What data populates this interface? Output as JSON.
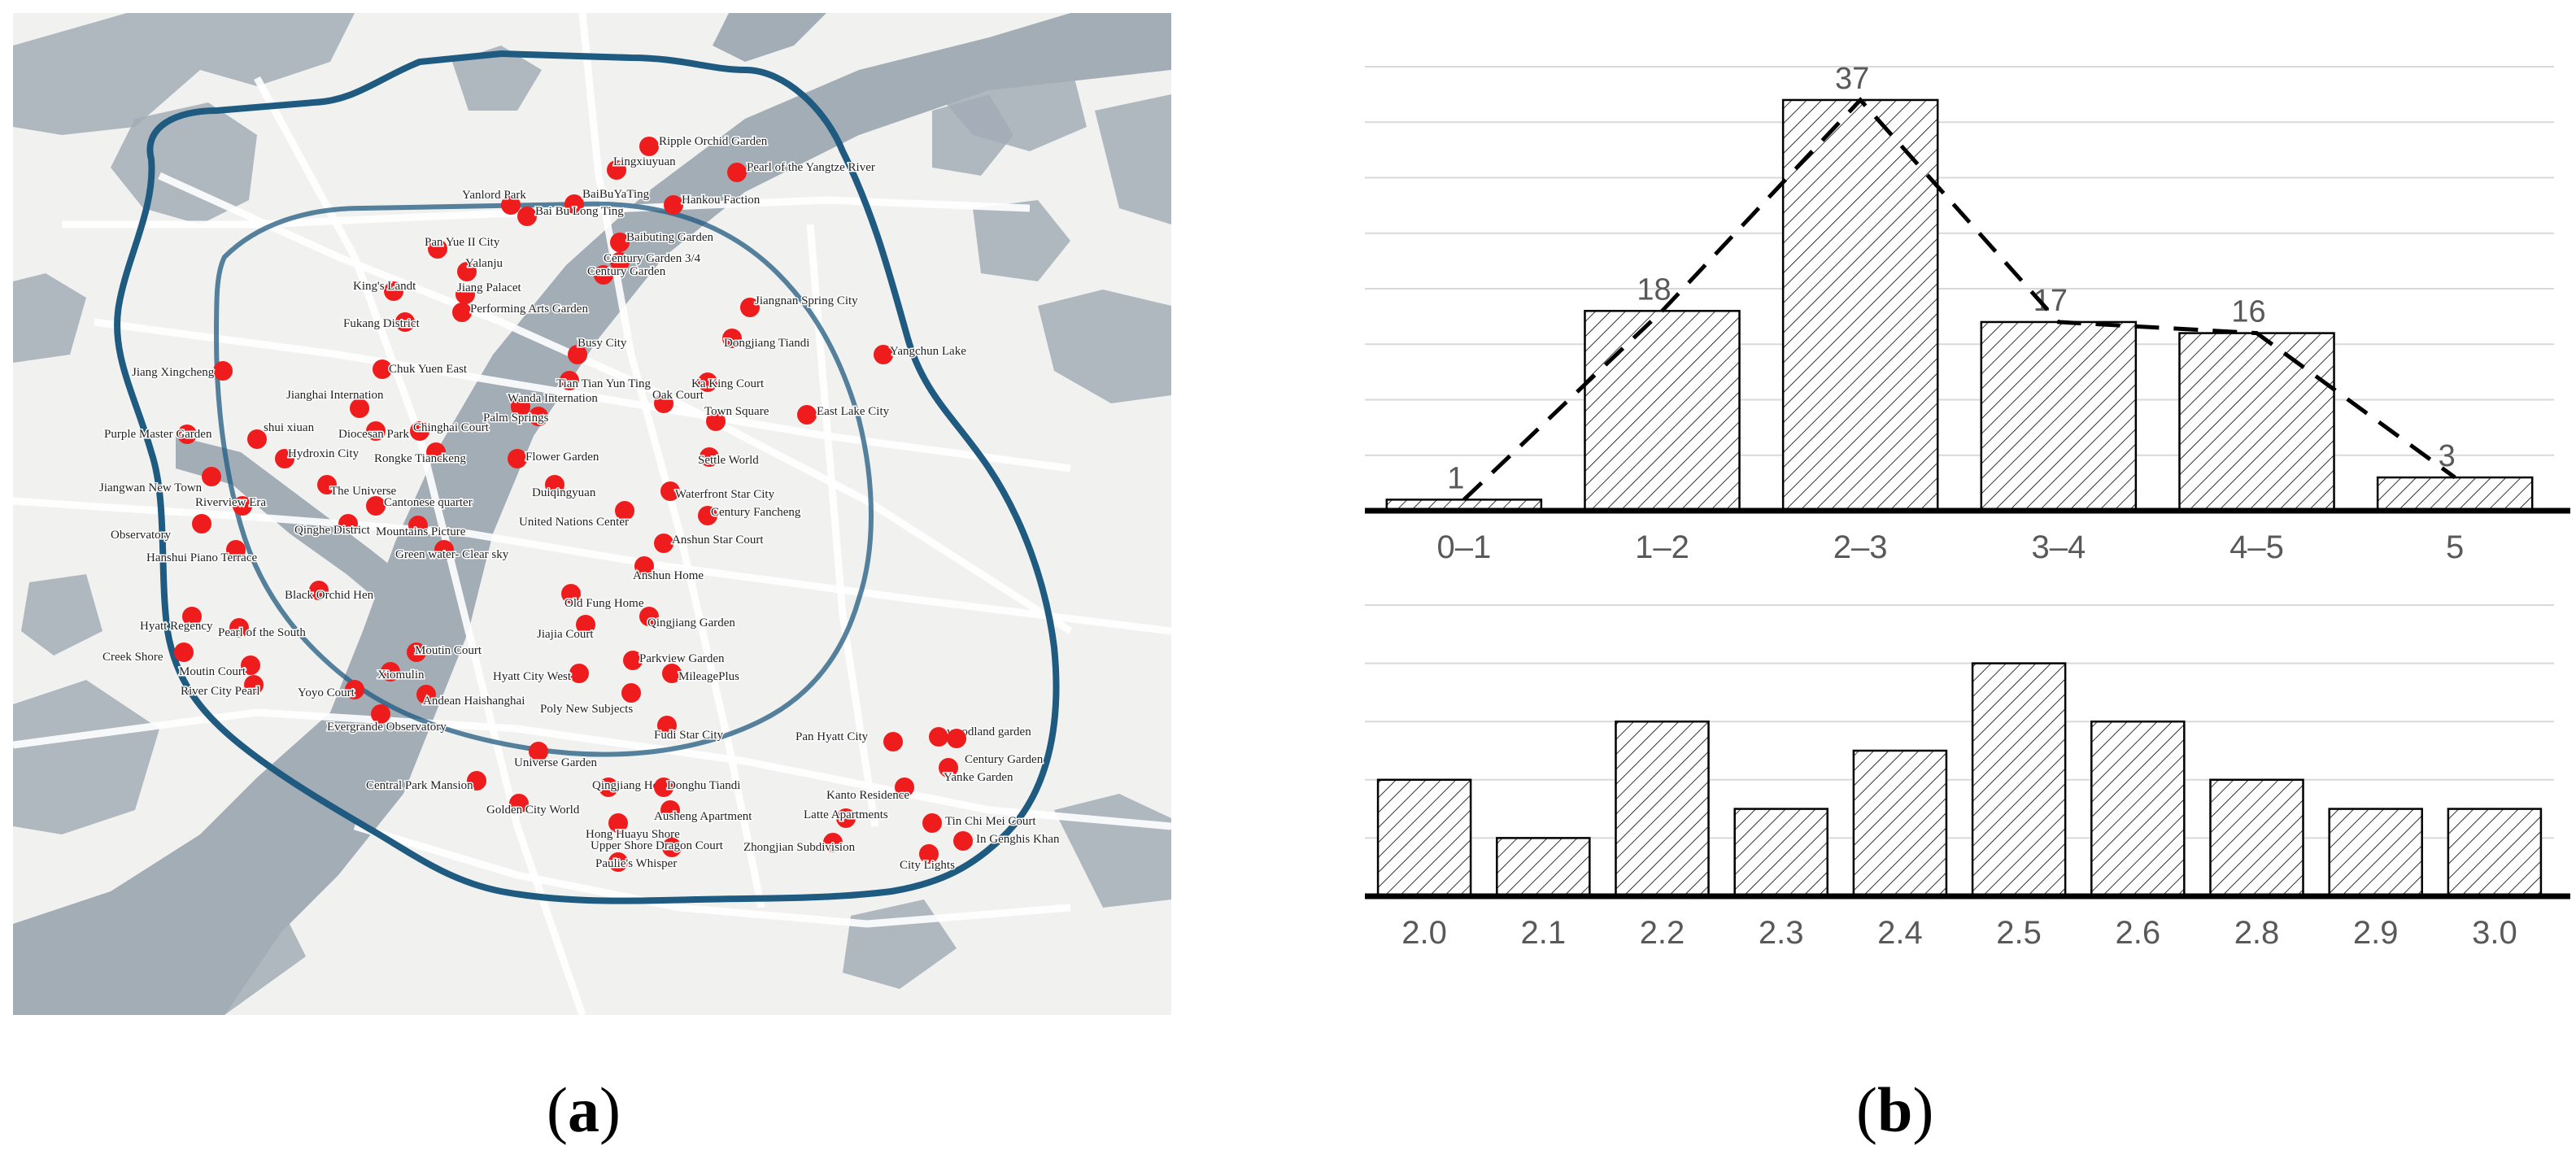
{
  "panel_labels": {
    "a": "a",
    "b": "b"
  },
  "map": {
    "colors": {
      "water": "#a3adb6",
      "land": "#f1f2f0",
      "park": "#dde3d9",
      "ring_road": "#1f5a80",
      "marker": "#ee1c1c",
      "label": "#222222"
    },
    "places": [
      "Ripple Orchid Garden",
      "Lingxiuyuan",
      "Pearl of the Yangtze River",
      "Yanlord Park",
      "BaiBuYaTing",
      "Hankou Faction",
      "Bai Bu Long Ting",
      "Baibuting Garden",
      "Pan Yue II City",
      "Century Garden 3/4",
      "Yalanju",
      "Century Garden",
      "King's Landt",
      "Jiang Palacet",
      "Jiangnan Spring City",
      "Performing Arts Garden",
      "Fukang District",
      "Dongjiang Tiandi",
      "Jiang Xingcheng",
      "Chuk Yuen East",
      "Busy City",
      "Yangchun Lake",
      "Tian Tian Yun Ting",
      "Ka King Court",
      "Jianghai Internation",
      "Wanda Internation",
      "Oak Court",
      "Palm Springs",
      "Town Square",
      "East Lake City",
      "Purple Master Garden",
      "Diocesan Park",
      "Chinghai Court",
      "shui xiuan",
      "Hydroxin City",
      "Rongke Tianckeng",
      "Flower Garden",
      "Settle World",
      "Jiangwan New Town",
      "The Universe",
      "Duiqingyuan",
      "Waterfront Star City",
      "Riverview Era",
      "Cantonese quarter",
      "United Nations Center",
      "Century Fancheng",
      "Observatory",
      "Qinghe District",
      "Mountains Picture",
      "Anshun Star Court",
      "Hanshui Piano Terrace",
      "Green water- Clear sky",
      "Anshun Home",
      "Black Orchid Hen",
      "Old Fung Home",
      "Hyatt Regency",
      "Pearl of the South",
      "Jiajia Court",
      "Qingjiang Garden",
      "Creek Shore",
      "Moutin Court",
      "Moutin Court",
      "Parkview Garden",
      "Xiomulin",
      "Hyatt City West",
      "MileagePlus",
      "Yoyo Court",
      "River City Pearl",
      "Andean Haishanghai",
      "Poly New Subjects",
      "Evergrande Observatory",
      "Fudi Star City",
      "Pan Hyatt City",
      "woodland garden",
      "Century Garden",
      "Universe Garden",
      "Yanke Garden",
      "Central Park Mansion",
      "Qingjiang Hous",
      "Donghu Tiandi",
      "Kanto Residence",
      "Golden City World",
      "Ausheng Apartment",
      "Hong Huayu Shore",
      "Latte Apartments",
      "Tin Chi Mei Court",
      "Upper Shore Dragon Court",
      "In Genghis Khan",
      "Zhongjian Subdivision",
      "Paulie's Whisper",
      "City Lights"
    ]
  },
  "chart_data": [
    {
      "type": "bar",
      "categories": [
        "0–1",
        "1–2",
        "2–3",
        "3–4",
        "4–5",
        "5"
      ],
      "values": [
        1,
        18,
        37,
        17,
        16,
        3
      ],
      "data_labels": [
        "1",
        "18",
        "37",
        "17",
        "16",
        "3"
      ],
      "ylim": [
        0,
        40
      ],
      "yticks": [
        "0",
        "5",
        "10",
        "15",
        "20",
        "25",
        "30",
        "35",
        "40"
      ],
      "grid": true,
      "trend_line": "dashed",
      "bar_fill": "hatched",
      "colors": {
        "axis": "#000000",
        "tick_text": "#595959",
        "grid": "#d9d9d9"
      }
    },
    {
      "type": "bar",
      "categories": [
        "2.0",
        "2.1",
        "2.2",
        "2.3",
        "2.4",
        "2.5",
        "2.6",
        "2.8",
        "2.9",
        "3.0"
      ],
      "values": [
        4,
        2,
        6,
        3,
        5,
        8,
        6,
        4,
        3,
        3
      ],
      "ylim": [
        0,
        10
      ],
      "yticks": [
        "0",
        "2",
        "4",
        "6",
        "8",
        "10"
      ],
      "grid": true,
      "bar_fill": "hatched",
      "colors": {
        "axis": "#000000",
        "tick_text": "#595959",
        "grid": "#d9d9d9"
      }
    }
  ]
}
